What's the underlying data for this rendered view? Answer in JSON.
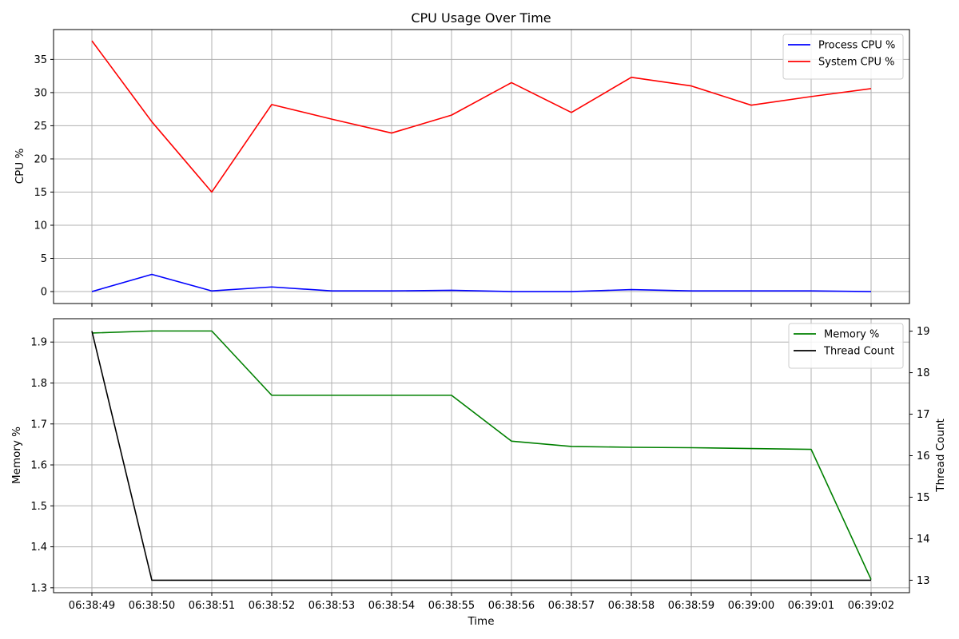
{
  "chart_data": [
    {
      "type": "line",
      "title": "CPU Usage Over Time",
      "xlabel": "",
      "ylabel": "CPU %",
      "ylim": [
        -1.8,
        39.5
      ],
      "yticks": [
        0,
        5,
        10,
        15,
        20,
        25,
        30,
        35
      ],
      "grid": true,
      "legend": "top-right",
      "x": [
        "06:38:49",
        "06:38:50",
        "06:38:51",
        "06:38:52",
        "06:38:53",
        "06:38:54",
        "06:38:55",
        "06:38:56",
        "06:38:57",
        "06:38:58",
        "06:38:59",
        "06:39:00",
        "06:39:01",
        "06:39:02"
      ],
      "series": [
        {
          "name": "Process CPU %",
          "color": "#0000ff",
          "values": [
            0.0,
            2.6,
            0.1,
            0.7,
            0.1,
            0.1,
            0.2,
            0.0,
            0.0,
            0.3,
            0.1,
            0.1,
            0.1,
            0.0
          ]
        },
        {
          "name": "System CPU %",
          "color": "#ff0000",
          "values": [
            37.8,
            25.6,
            15.0,
            28.2,
            26.0,
            23.9,
            26.6,
            31.5,
            27.0,
            32.3,
            31.0,
            28.1,
            29.4,
            30.6
          ]
        }
      ]
    },
    {
      "type": "line",
      "title": "",
      "xlabel": "Time",
      "ylabel": "Memory %",
      "y2label": "Thread Count",
      "ylim": [
        1.288,
        1.957
      ],
      "yticks": [
        1.3,
        1.4,
        1.5,
        1.6,
        1.7,
        1.8,
        1.9
      ],
      "y2lim": [
        12.7,
        19.3
      ],
      "y2ticks": [
        13,
        14,
        15,
        16,
        17,
        18,
        19
      ],
      "grid": true,
      "legend": "top-right",
      "x": [
        "06:38:49",
        "06:38:50",
        "06:38:51",
        "06:38:52",
        "06:38:53",
        "06:38:54",
        "06:38:55",
        "06:38:56",
        "06:38:57",
        "06:38:58",
        "06:38:59",
        "06:39:00",
        "06:39:01",
        "06:39:02"
      ],
      "series": [
        {
          "name": "Memory %",
          "color": "#008000",
          "axis": "left",
          "values": [
            1.922,
            1.927,
            1.927,
            1.77,
            1.77,
            1.77,
            1.77,
            1.658,
            1.645,
            1.643,
            1.642,
            1.64,
            1.638,
            1.32
          ]
        },
        {
          "name": "Thread Count",
          "color": "#000000",
          "axis": "right",
          "values": [
            19,
            13,
            13,
            13,
            13,
            13,
            13,
            13,
            13,
            13,
            13,
            13,
            13,
            13
          ]
        }
      ]
    }
  ]
}
